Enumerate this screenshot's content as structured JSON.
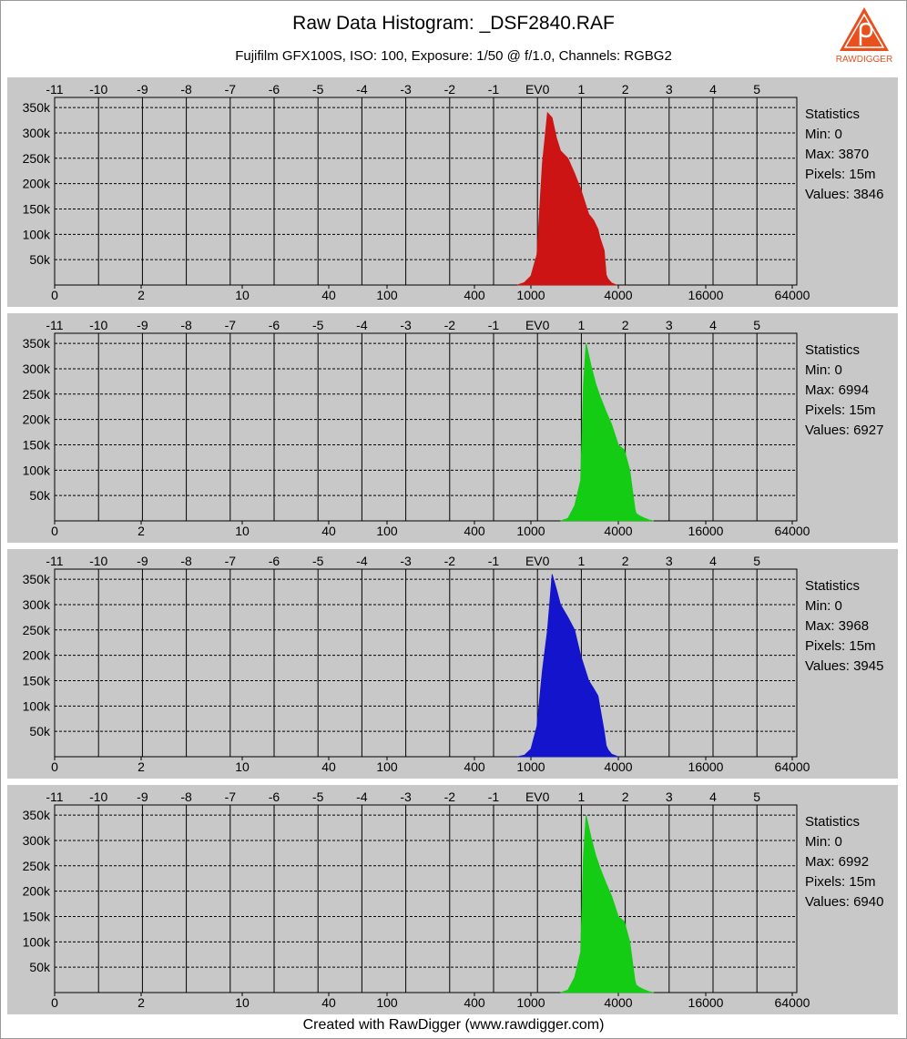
{
  "header": {
    "title": "Raw Data Histogram: _DSF2840.RAF",
    "subtitle": "Fujifilm GFX100S, ISO: 100, Exposure: 1/50 @ f/1.0, Channels: RGBG2"
  },
  "logo": {
    "text": "RAWDIGGER",
    "icon": "rawdigger-logo-icon",
    "color": "#e8501e"
  },
  "footer": {
    "text": "Created with RawDigger (www.rawdigger.com)"
  },
  "chart_data": [
    {
      "type": "area",
      "channel": "R",
      "color": "#cc1414",
      "top_axis_ticks": [
        "-11",
        "-10",
        "-9",
        "-8",
        "-7",
        "-6",
        "-5",
        "-4",
        "-3",
        "-2",
        "-1",
        "EV0",
        "1",
        "2",
        "3",
        "4",
        "5"
      ],
      "bottom_axis_ticks": [
        "0",
        "2",
        "10",
        "40",
        "100",
        "400",
        "1000",
        "4000",
        "16000",
        "64000"
      ],
      "y_ticks": [
        "50k",
        "100k",
        "150k",
        "200k",
        "250k",
        "300k",
        "350k"
      ],
      "ylim": [
        0,
        370000
      ],
      "statistics": {
        "heading": "Statistics",
        "min": "Min: 0",
        "max": "Max: 3870",
        "pixels": "Pixels: 15m",
        "values": "Values: 3846"
      },
      "x": [
        800,
        900,
        1000,
        1100,
        1200,
        1300,
        1400,
        1500,
        1600,
        1800,
        2000,
        2200,
        2500,
        2700,
        2900,
        3000,
        3200,
        3300,
        3400,
        3600,
        3900
      ],
      "values": [
        0,
        5000,
        18000,
        60000,
        240000,
        340000,
        330000,
        290000,
        265000,
        250000,
        220000,
        190000,
        140000,
        128000,
        110000,
        92000,
        68000,
        20000,
        12000,
        4000,
        0
      ]
    },
    {
      "type": "area",
      "channel": "G",
      "color": "#14cc14",
      "top_axis_ticks": [
        "-11",
        "-10",
        "-9",
        "-8",
        "-7",
        "-6",
        "-5",
        "-4",
        "-3",
        "-2",
        "-1",
        "EV0",
        "1",
        "2",
        "3",
        "4",
        "5"
      ],
      "bottom_axis_ticks": [
        "0",
        "2",
        "10",
        "40",
        "100",
        "400",
        "1000",
        "4000",
        "16000",
        "64000"
      ],
      "y_ticks": [
        "50k",
        "100k",
        "150k",
        "200k",
        "250k",
        "300k",
        "350k"
      ],
      "ylim": [
        0,
        370000
      ],
      "statistics": {
        "heading": "Statistics",
        "min": "Min: 0",
        "max": "Max: 6994",
        "pixels": "Pixels: 15m",
        "values": "Values: 6927"
      },
      "x": [
        1600,
        1800,
        2000,
        2200,
        2300,
        2400,
        2600,
        2800,
        3000,
        3300,
        3600,
        4000,
        4400,
        4800,
        5200,
        5300,
        5600,
        6000,
        6500,
        7000
      ],
      "values": [
        0,
        5000,
        30000,
        80000,
        270000,
        350000,
        305000,
        270000,
        245000,
        215000,
        190000,
        150000,
        140000,
        100000,
        25000,
        15000,
        10000,
        6000,
        2000,
        0
      ]
    },
    {
      "type": "area",
      "channel": "B",
      "color": "#1414cc",
      "top_axis_ticks": [
        "-11",
        "-10",
        "-9",
        "-8",
        "-7",
        "-6",
        "-5",
        "-4",
        "-3",
        "-2",
        "-1",
        "EV0",
        "1",
        "2",
        "3",
        "4",
        "5"
      ],
      "bottom_axis_ticks": [
        "0",
        "2",
        "10",
        "40",
        "100",
        "400",
        "1000",
        "4000",
        "16000",
        "64000"
      ],
      "y_ticks": [
        "50k",
        "100k",
        "150k",
        "200k",
        "250k",
        "300k",
        "350k"
      ],
      "ylim": [
        0,
        370000
      ],
      "statistics": {
        "heading": "Statistics",
        "min": "Min: 0",
        "max": "Max: 3968",
        "pixels": "Pixels: 15m",
        "values": "Values: 3945"
      },
      "x": [
        800,
        900,
        1000,
        1100,
        1200,
        1300,
        1400,
        1500,
        1600,
        1800,
        2000,
        2200,
        2500,
        2700,
        2900,
        3000,
        3200,
        3300,
        3400,
        3600,
        4000
      ],
      "values": [
        0,
        3000,
        15000,
        60000,
        170000,
        250000,
        360000,
        330000,
        300000,
        275000,
        250000,
        200000,
        150000,
        135000,
        120000,
        95000,
        50000,
        22000,
        14000,
        5000,
        0
      ]
    },
    {
      "type": "area",
      "channel": "G2",
      "color": "#14cc14",
      "top_axis_ticks": [
        "-11",
        "-10",
        "-9",
        "-8",
        "-7",
        "-6",
        "-5",
        "-4",
        "-3",
        "-2",
        "-1",
        "EV0",
        "1",
        "2",
        "3",
        "4",
        "5"
      ],
      "bottom_axis_ticks": [
        "0",
        "2",
        "10",
        "40",
        "100",
        "400",
        "1000",
        "4000",
        "16000",
        "64000"
      ],
      "y_ticks": [
        "50k",
        "100k",
        "150k",
        "200k",
        "250k",
        "300k",
        "350k"
      ],
      "ylim": [
        0,
        370000
      ],
      "statistics": {
        "heading": "Statistics",
        "min": "Min: 0",
        "max": "Max: 6992",
        "pixels": "Pixels: 15m",
        "values": "Values: 6940"
      },
      "x": [
        1600,
        1800,
        2000,
        2200,
        2300,
        2400,
        2600,
        2800,
        3000,
        3300,
        3600,
        4000,
        4400,
        4800,
        5200,
        5300,
        5600,
        6000,
        6500,
        7000
      ],
      "values": [
        0,
        5000,
        30000,
        80000,
        270000,
        350000,
        305000,
        270000,
        245000,
        215000,
        190000,
        150000,
        140000,
        100000,
        25000,
        15000,
        10000,
        6000,
        2000,
        0
      ]
    }
  ]
}
